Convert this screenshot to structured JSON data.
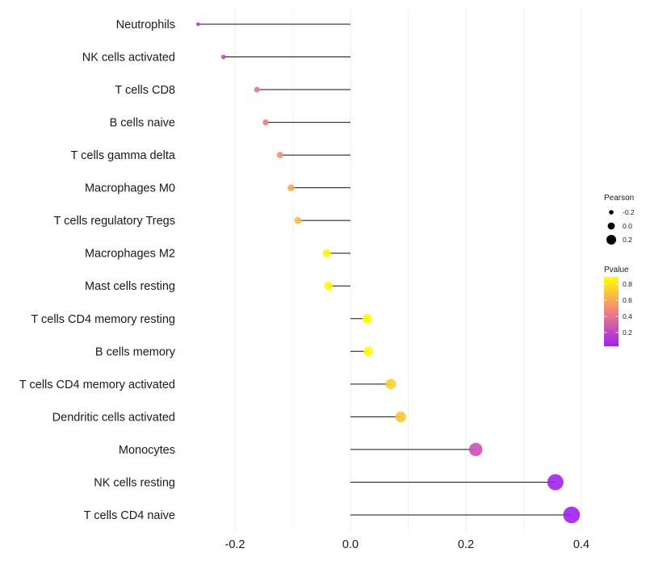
{
  "chart_data": {
    "type": "lollipop",
    "title": "",
    "xlabel": "",
    "ylabel": "",
    "xlim": [
      -0.29,
      0.42
    ],
    "x_ticks": [
      -0.2,
      0.0,
      0.2,
      0.4
    ],
    "x_tick_labels": [
      "-0.2",
      "0.0",
      "0.2",
      "0.4"
    ],
    "grid": true,
    "legend_placement": "right",
    "categories": [
      "Neutrophils",
      "NK cells activated",
      "T cells CD8",
      "B cells naive",
      "T cells gamma delta",
      "Macrophages M0",
      "T cells regulatory  Tregs ",
      "Macrophages M2",
      "Mast cells resting",
      "T cells CD4 memory resting",
      "B cells memory",
      "T cells CD4 memory activated",
      "Dendritic cells activated",
      "Monocytes",
      "NK cells resting",
      "T cells CD4 naive"
    ],
    "pearson": [
      -0.264,
      -0.22,
      -0.162,
      -0.147,
      -0.122,
      -0.103,
      -0.091,
      -0.041,
      -0.038,
      0.029,
      0.031,
      0.07,
      0.087,
      0.217,
      0.355,
      0.383
    ],
    "pvalue": [
      0.15,
      0.22,
      0.42,
      0.46,
      0.52,
      0.6,
      0.66,
      0.86,
      0.87,
      0.89,
      0.88,
      0.74,
      0.7,
      0.25,
      0.05,
      0.03
    ],
    "size_legend": {
      "title": "Pearson",
      "values": [
        -0.2,
        0.0,
        0.2
      ],
      "labels": [
        "-0.2",
        "0.0",
        "0.2"
      ]
    },
    "color_legend": {
      "title": "Pvalue",
      "range": [
        0.03,
        0.89
      ],
      "ticks": [
        0.2,
        0.4,
        0.6,
        0.8
      ],
      "labels": [
        "0.2",
        "0.4",
        "0.6",
        "0.8"
      ],
      "low_color": "#A020F0",
      "mid_color": "#F08080",
      "high_color": "#FFFF00"
    }
  }
}
